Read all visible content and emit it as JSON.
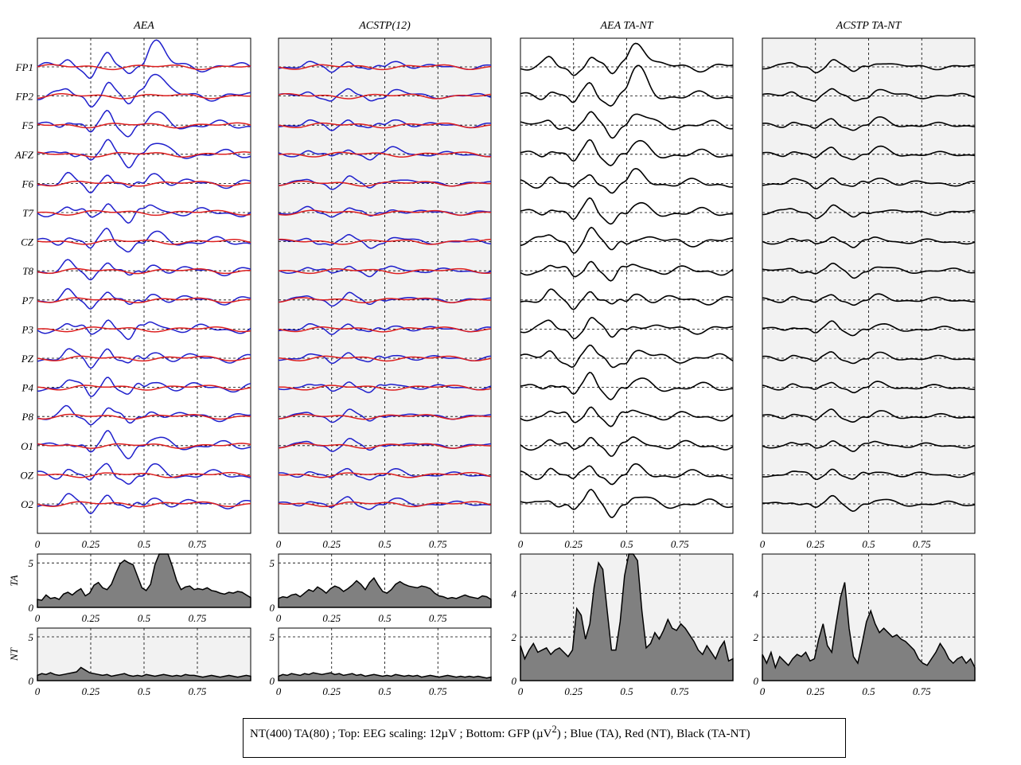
{
  "caption": {
    "text_before_sup": "NT(400) TA(80) ; Top: EEG scaling: 12µV ; Bottom: GFP (µV",
    "sup": "2",
    "text_after_sup": ") ; Blue (TA), Red (NT), Black (TA-NT)"
  },
  "colors": {
    "blue": "#1f1fcc",
    "red": "#dd1f1f",
    "black": "#000000",
    "panel_bg_gray": "#f2f2f2",
    "gfp_fill": "#808080"
  },
  "chart_data": {
    "type": "line",
    "channels": [
      "FP1",
      "FP2",
      "F5",
      "AFZ",
      "F6",
      "T7",
      "CZ",
      "T8",
      "P7",
      "P3",
      "PZ",
      "P4",
      "P8",
      "O1",
      "OZ",
      "O2"
    ],
    "x_ticks": [
      "0",
      "0.25",
      "0.5",
      "0.75"
    ],
    "xlim": [
      0,
      1
    ],
    "eeg_scaling": "12µV",
    "panels": [
      {
        "title": "AEA",
        "background": "white",
        "series": [
          "blue",
          "red"
        ],
        "gfp": [
          {
            "ylabel": "TA",
            "yticks": [
              "0",
              "5"
            ],
            "ylim": [
              0,
              6
            ],
            "background": "white",
            "values": [
              0.9,
              0.8,
              1.4,
              1.0,
              1.1,
              0.9,
              1.5,
              1.7,
              1.4,
              1.8,
              2.1,
              1.3,
              1.6,
              2.5,
              2.8,
              2.2,
              2.0,
              2.6,
              3.8,
              4.9,
              5.3,
              5.0,
              4.8,
              3.5,
              2.2,
              1.9,
              2.6,
              4.8,
              6.2,
              6.5,
              6.0,
              4.6,
              3.0,
              2.0,
              2.3,
              2.4,
              2.0,
              2.1,
              2.0,
              2.2,
              1.9,
              1.8,
              1.6,
              1.5,
              1.7,
              1.6,
              1.8,
              1.7,
              1.4,
              1.1
            ]
          },
          {
            "ylabel": "NT",
            "yticks": [
              "0",
              "5"
            ],
            "ylim": [
              0,
              6
            ],
            "background": "gray",
            "values": [
              0.6,
              0.8,
              0.7,
              0.9,
              0.7,
              0.6,
              0.7,
              0.8,
              0.9,
              1.0,
              1.5,
              1.2,
              0.9,
              0.8,
              0.7,
              0.6,
              0.7,
              0.5,
              0.6,
              0.7,
              0.8,
              0.6,
              0.5,
              0.6,
              0.5,
              0.7,
              0.6,
              0.5,
              0.6,
              0.7,
              0.6,
              0.5,
              0.6,
              0.5,
              0.7,
              0.6,
              0.6,
              0.5,
              0.4,
              0.5,
              0.6,
              0.5,
              0.4,
              0.5,
              0.6,
              0.5,
              0.4,
              0.5,
              0.6,
              0.5
            ]
          }
        ]
      },
      {
        "title": "ACSTP(12)",
        "background": "gray",
        "series": [
          "blue",
          "red"
        ],
        "gfp": [
          {
            "ylabel": "",
            "yticks": [
              "0",
              "5"
            ],
            "ylim": [
              0,
              6
            ],
            "background": "white",
            "values": [
              1.0,
              1.2,
              1.1,
              1.4,
              1.5,
              1.2,
              1.6,
              2.0,
              1.8,
              2.3,
              2.0,
              1.6,
              2.1,
              2.4,
              2.2,
              1.8,
              2.1,
              2.5,
              3.0,
              2.6,
              2.0,
              2.8,
              3.3,
              2.5,
              1.8,
              1.6,
              2.0,
              2.6,
              2.9,
              2.6,
              2.4,
              2.3,
              2.2,
              2.4,
              2.3,
              2.1,
              1.6,
              1.3,
              1.2,
              1.0,
              1.1,
              1.0,
              1.2,
              1.4,
              1.2,
              1.1,
              1.0,
              1.3,
              1.2,
              0.9
            ]
          },
          {
            "ylabel": "",
            "yticks": [
              "0",
              "5"
            ],
            "ylim": [
              0,
              6
            ],
            "background": "white",
            "values": [
              0.5,
              0.7,
              0.6,
              0.8,
              0.7,
              0.6,
              0.8,
              0.7,
              0.9,
              0.8,
              0.7,
              0.8,
              0.9,
              0.7,
              0.8,
              0.6,
              0.7,
              0.8,
              0.6,
              0.7,
              0.5,
              0.6,
              0.7,
              0.6,
              0.5,
              0.6,
              0.5,
              0.7,
              0.6,
              0.5,
              0.6,
              0.5,
              0.6,
              0.4,
              0.5,
              0.6,
              0.5,
              0.4,
              0.5,
              0.6,
              0.5,
              0.4,
              0.5,
              0.4,
              0.5,
              0.4,
              0.5,
              0.4,
              0.3,
              0.4
            ]
          }
        ]
      },
      {
        "title": "AEA TA-NT",
        "background": "white",
        "series": [
          "black"
        ],
        "gfp": [
          {
            "ylabel": "",
            "yticks": [
              "0",
              "2",
              "4"
            ],
            "ylim": [
              0,
              5.8
            ],
            "background": "gray",
            "values": [
              1.6,
              1.0,
              1.4,
              1.7,
              1.3,
              1.4,
              1.5,
              1.2,
              1.4,
              1.5,
              1.3,
              1.1,
              1.4,
              3.3,
              3.0,
              1.9,
              2.6,
              4.3,
              5.4,
              5.1,
              3.2,
              1.4,
              1.4,
              2.7,
              4.8,
              6.0,
              6.2,
              5.5,
              3.2,
              1.5,
              1.7,
              2.2,
              1.9,
              2.3,
              2.8,
              2.4,
              2.3,
              2.6,
              2.4,
              2.1,
              1.8,
              1.4,
              1.2,
              1.6,
              1.3,
              1.0,
              1.5,
              1.8,
              0.9,
              1.0
            ]
          },
          null
        ]
      },
      {
        "title": "ACSTP TA-NT",
        "background": "gray",
        "series": [
          "black"
        ],
        "gfp": [
          {
            "ylabel": "",
            "yticks": [
              "0",
              "2",
              "4"
            ],
            "ylim": [
              0,
              5.8
            ],
            "background": "gray",
            "values": [
              1.2,
              0.8,
              1.3,
              0.6,
              1.1,
              0.9,
              0.7,
              1.0,
              1.2,
              1.1,
              1.3,
              0.9,
              1.0,
              1.9,
              2.6,
              1.6,
              1.3,
              2.6,
              3.8,
              4.5,
              2.4,
              1.1,
              0.8,
              1.7,
              2.7,
              3.2,
              2.6,
              2.2,
              2.4,
              2.2,
              2.0,
              2.1,
              1.9,
              1.8,
              1.6,
              1.4,
              1.0,
              0.8,
              0.7,
              1.0,
              1.3,
              1.7,
              1.4,
              1.0,
              0.8,
              1.0,
              1.1,
              0.8,
              1.0,
              0.6
            ]
          },
          null
        ]
      }
    ]
  }
}
